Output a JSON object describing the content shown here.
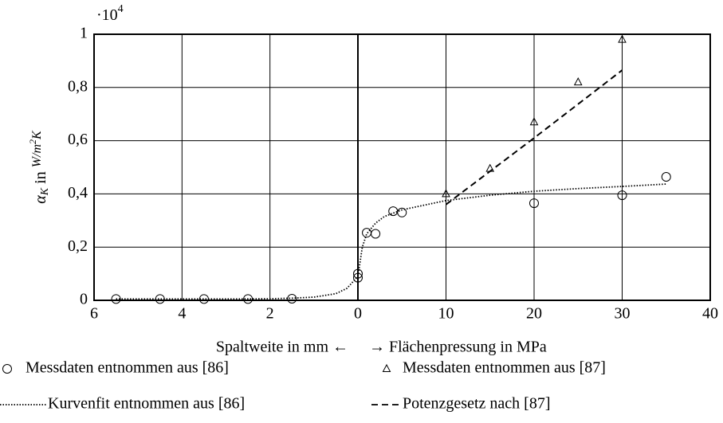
{
  "chart_data": {
    "type": "scatter",
    "y_multiplier": {
      "base": "·10",
      "exp": "4"
    },
    "ylabel": {
      "symbol": "α",
      "sub": "K",
      "text": " in ",
      "unit": "W/m",
      "sup": "2",
      "unit_end": "K"
    },
    "xlabel": "Spaltweite in mm ←",
    "x2label": "→ Flächenpressung in MPa",
    "xlim": [
      6,
      0
    ],
    "xticks": [
      6,
      4,
      2,
      0
    ],
    "x2lim": [
      0,
      40
    ],
    "x2ticks": [
      10,
      20,
      30,
      40
    ],
    "ylim": [
      0,
      1
    ],
    "yticks": [
      0,
      {
        "value": 0.2,
        "label": "0,2"
      },
      {
        "value": 0.4,
        "label": "0,4"
      },
      {
        "value": 0.6,
        "label": "0,6"
      },
      {
        "value": 0.8,
        "label": "0,8"
      },
      1
    ],
    "grid": true,
    "series": [
      {
        "name": "Messdaten entnommen aus [86]",
        "marker": "circle",
        "color": "#000000",
        "gap": {
          "x": [
            5.5,
            4.5,
            3.5,
            2.5,
            1.5
          ],
          "values": [
            0.005,
            0.005,
            0.005,
            0.005,
            0.006
          ]
        },
        "pressure": {
          "x": [
            0,
            0,
            1,
            2,
            4,
            5,
            20,
            30,
            35
          ],
          "values": [
            0.1,
            0.085,
            0.254,
            0.25,
            0.335,
            0.33,
            0.365,
            0.395,
            0.464
          ]
        }
      },
      {
        "name": "Messdaten entnommen aus [87]",
        "marker": "triangle",
        "color": "#000000",
        "pressure": {
          "x": [
            10,
            15,
            20,
            25,
            30
          ],
          "values": [
            0.4,
            0.495,
            0.67,
            0.82,
            0.98
          ]
        }
      },
      {
        "name": "Kurvenfit entnommen aus [86]",
        "marker": "dotted",
        "color": "#000000",
        "gap": {
          "x": [
            5.5,
            4,
            3,
            2,
            1.5,
            1,
            0.5,
            0.25,
            0
          ],
          "values": [
            0.005,
            0.005,
            0.005,
            0.006,
            0.008,
            0.012,
            0.025,
            0.045,
            0.09
          ]
        },
        "pressure": {
          "x": [
            0,
            0.5,
            1,
            2,
            3,
            5,
            10,
            15,
            20,
            25,
            30,
            35
          ],
          "values": [
            0.09,
            0.2,
            0.25,
            0.29,
            0.315,
            0.34,
            0.375,
            0.395,
            0.41,
            0.42,
            0.428,
            0.437
          ]
        }
      },
      {
        "name": "Potenzgesetz nach [87]",
        "marker": "dashed",
        "color": "#000000",
        "pressure": {
          "x": [
            10,
            20,
            30
          ],
          "values": [
            0.36,
            0.61,
            0.865
          ]
        }
      }
    ]
  }
}
